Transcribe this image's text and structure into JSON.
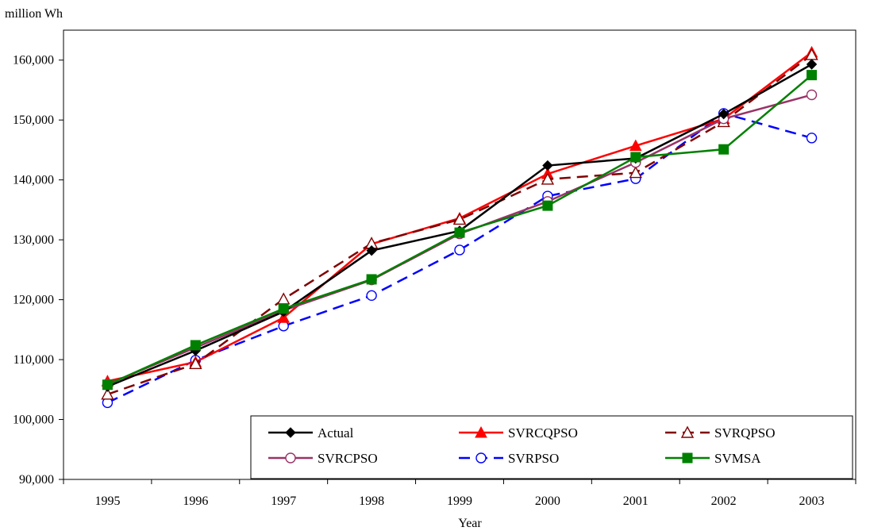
{
  "chart_data": {
    "type": "line",
    "title": "",
    "ylabel": "million Wh",
    "xlabel": "Year",
    "categories": [
      "1995",
      "1996",
      "1997",
      "1998",
      "1999",
      "2000",
      "2001",
      "2002",
      "2003"
    ],
    "ylim": [
      90000,
      165000
    ],
    "yticks": [
      90000,
      100000,
      110000,
      120000,
      130000,
      140000,
      150000,
      160000
    ],
    "ytick_labels": [
      "90,000",
      "100,000",
      "110,000",
      "120,000",
      "130,000",
      "140,000",
      "150,000",
      "160,000"
    ],
    "grid": false,
    "legend_position": "bottom-right",
    "series": [
      {
        "name": "Actual",
        "color": "#000000",
        "dash": "solid",
        "marker": "diamond",
        "values": [
          105500,
          111500,
          118000,
          128200,
          131500,
          142400,
          143600,
          151000,
          159300
        ]
      },
      {
        "name": "SVRCQPSO",
        "color": "#ff0000",
        "dash": "solid",
        "marker": "triangle-filled",
        "values": [
          106400,
          109600,
          117000,
          129300,
          133600,
          141000,
          145700,
          150200,
          161300
        ]
      },
      {
        "name": "SVRQPSO",
        "color": "#800000",
        "dash": "dashed",
        "marker": "triangle-open",
        "values": [
          104200,
          109300,
          120100,
          129400,
          133400,
          140100,
          141200,
          149700,
          160900
        ]
      },
      {
        "name": "SVRCPSO",
        "color": "#993366",
        "dash": "solid",
        "marker": "circle-open",
        "values": [
          105900,
          112000,
          118200,
          123300,
          131000,
          136400,
          142900,
          150200,
          154200
        ]
      },
      {
        "name": "SVRPSO",
        "color": "#0000ff",
        "dash": "dashed",
        "marker": "circle-open",
        "values": [
          102800,
          109900,
          115600,
          120700,
          128300,
          137300,
          140200,
          151100,
          147000
        ]
      },
      {
        "name": "SVMSA",
        "color": "#008000",
        "dash": "solid",
        "marker": "square",
        "values": [
          105800,
          112400,
          118500,
          123400,
          131200,
          135700,
          143800,
          145100,
          157500
        ]
      }
    ]
  }
}
